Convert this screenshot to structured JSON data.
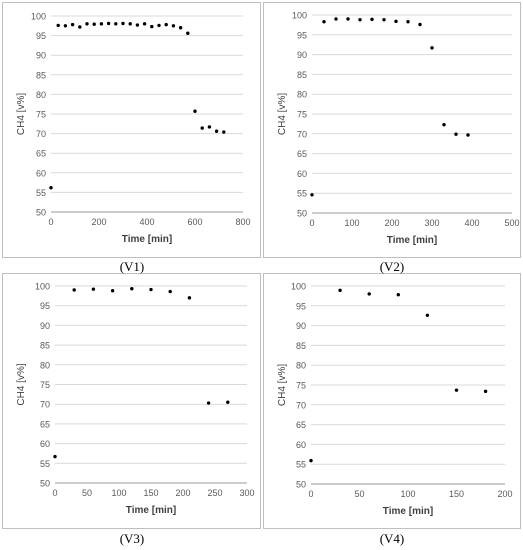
{
  "chart_data": [
    {
      "type": "scatter",
      "caption": "(V1)",
      "title": "",
      "xlabel": "Time [min]",
      "ylabel": "CH4 [v%]",
      "xlim": [
        0,
        800
      ],
      "ylim": [
        50,
        100
      ],
      "xticks": [
        0,
        200,
        400,
        600,
        800
      ],
      "yticks": [
        50,
        55,
        60,
        65,
        70,
        75,
        80,
        85,
        90,
        95,
        100
      ],
      "grid": "horizontal",
      "x": [
        0,
        30,
        60,
        90,
        120,
        150,
        180,
        210,
        240,
        270,
        300,
        330,
        360,
        390,
        420,
        450,
        480,
        510,
        540,
        570,
        600,
        630,
        660,
        690,
        720
      ],
      "y": [
        56.2,
        97.6,
        97.5,
        97.8,
        97.2,
        98.0,
        97.9,
        98.0,
        98.1,
        98.0,
        98.1,
        98.0,
        97.7,
        98.0,
        97.3,
        97.6,
        97.8,
        97.5,
        97.0,
        95.6,
        75.7,
        71.4,
        71.7,
        70.6,
        70.4
      ]
    },
    {
      "type": "scatter",
      "caption": "(V2)",
      "title": "",
      "xlabel": "Time [min]",
      "ylabel": "CH4 [v%]",
      "xlim": [
        0,
        500
      ],
      "ylim": [
        50,
        100
      ],
      "xticks": [
        0,
        100,
        200,
        300,
        400,
        500
      ],
      "yticks": [
        50,
        55,
        60,
        65,
        70,
        75,
        80,
        85,
        90,
        95,
        100
      ],
      "grid": "horizontal",
      "x": [
        0,
        30,
        60,
        90,
        120,
        150,
        180,
        210,
        240,
        270,
        300,
        330,
        360,
        390
      ],
      "y": [
        54.6,
        98.3,
        99.0,
        99.0,
        98.8,
        98.9,
        98.8,
        98.4,
        98.3,
        97.6,
        91.7,
        72.3,
        69.9,
        69.7
      ]
    },
    {
      "type": "scatter",
      "caption": "(V3)",
      "title": "",
      "xlabel": "Time [min]",
      "ylabel": "CH4 [v%]",
      "xlim": [
        0,
        300
      ],
      "ylim": [
        50,
        100
      ],
      "xticks": [
        0,
        50,
        100,
        150,
        200,
        250,
        300
      ],
      "yticks": [
        50,
        55,
        60,
        65,
        70,
        75,
        80,
        85,
        90,
        95,
        100
      ],
      "grid": "horizontal",
      "x": [
        0,
        30,
        60,
        90,
        120,
        150,
        180,
        210,
        240,
        270
      ],
      "y": [
        56.7,
        99.0,
        99.2,
        98.8,
        99.3,
        99.1,
        98.6,
        97.0,
        70.3,
        70.5
      ]
    },
    {
      "type": "scatter",
      "caption": "(V4)",
      "title": "",
      "xlabel": "Time [min]",
      "ylabel": "CH4 [v%]",
      "xlim": [
        0,
        200
      ],
      "ylim": [
        50,
        100
      ],
      "xticks": [
        0,
        50,
        100,
        150,
        200
      ],
      "yticks": [
        50,
        55,
        60,
        65,
        70,
        75,
        80,
        85,
        90,
        95,
        100
      ],
      "grid": "horizontal",
      "x": [
        0,
        30,
        60,
        90,
        120,
        150,
        180
      ],
      "y": [
        55.9,
        98.9,
        98.0,
        97.8,
        92.6,
        73.7,
        73.4
      ]
    }
  ]
}
